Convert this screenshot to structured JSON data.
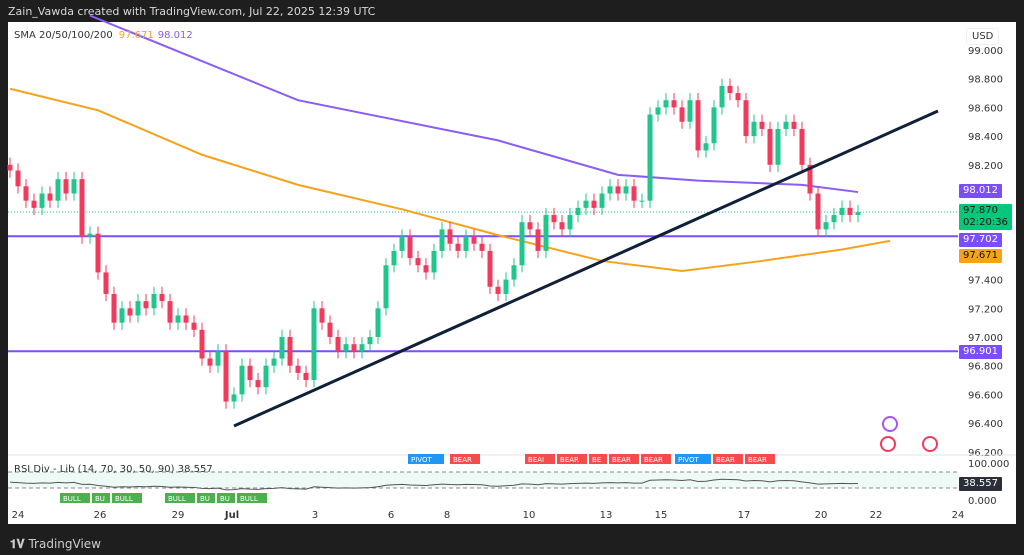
{
  "header": "Zain_Vawda created with TradingView.com, Jul 22, 2025 12:39 UTC",
  "legend": {
    "label": "SMA 20/50/100/200",
    "v1": "97.671",
    "v2": "98.012"
  },
  "rsi_legend": {
    "label": "RSI Div - Lib (14, 70, 30, 50, 90)",
    "value": "38.557"
  },
  "currency": "USD",
  "footer": "TradingView",
  "tags": {
    "sma200": "98.012",
    "last": "97.870",
    "countdown": "02:20:36",
    "hline1": "97.702",
    "sma100": "97.671",
    "hline2": "96.901",
    "rsi": "38.557"
  },
  "colors": {
    "up": "#22c58b",
    "down": "#f23b5c",
    "sma200": "#8b5cf6",
    "sma100": "#f7a21b",
    "hline": "#7c4dff",
    "trend": "#10203a"
  },
  "chart_data": {
    "type": "candlestick",
    "x_unit": "bar index",
    "price_ticks": [
      "99.000",
      "98.800",
      "98.600",
      "98.400",
      "98.200",
      "97.400",
      "97.200",
      "97.000",
      "96.800",
      "96.600",
      "96.400",
      "96.200"
    ],
    "date_ticks": [
      "24",
      "26",
      "29",
      "Jul",
      "3",
      "6",
      "8",
      "10",
      "13",
      "15",
      "17",
      "20",
      "22",
      "24"
    ],
    "closes": [
      98.16,
      98.05,
      97.95,
      97.9,
      98.0,
      97.95,
      98.1,
      98.0,
      98.1,
      97.7,
      97.72,
      97.45,
      97.3,
      97.1,
      97.2,
      97.15,
      97.25,
      97.2,
      97.3,
      97.25,
      97.1,
      97.15,
      97.1,
      97.05,
      96.85,
      96.8,
      96.9,
      96.55,
      96.6,
      96.8,
      96.7,
      96.65,
      96.8,
      96.85,
      97.0,
      96.8,
      96.75,
      96.7,
      97.2,
      97.1,
      97.0,
      96.9,
      96.95,
      96.9,
      96.95,
      97.0,
      97.2,
      97.5,
      97.6,
      97.7,
      97.55,
      97.5,
      97.45,
      97.6,
      97.75,
      97.65,
      97.6,
      97.7,
      97.65,
      97.6,
      97.35,
      97.3,
      97.4,
      97.5,
      97.8,
      97.75,
      97.6,
      97.85,
      97.8,
      97.75,
      97.85,
      97.9,
      97.95,
      97.9,
      98.0,
      98.05,
      98.0,
      98.05,
      97.95,
      97.95,
      98.55,
      98.6,
      98.65,
      98.6,
      98.5,
      98.65,
      98.3,
      98.35,
      98.6,
      98.75,
      98.7,
      98.65,
      98.4,
      98.5,
      98.45,
      98.2,
      98.45,
      98.5,
      98.45,
      98.2,
      98.0,
      97.75,
      97.8,
      97.85,
      97.9,
      97.85,
      97.87
    ],
    "sma200": [
      [
        10,
        99.24
      ],
      [
        36,
        98.65
      ],
      [
        61,
        98.37
      ],
      [
        76,
        98.13
      ],
      [
        86,
        98.09
      ],
      [
        99,
        98.06
      ],
      [
        106,
        98.01
      ]
    ],
    "sma100": [
      [
        0,
        98.73
      ],
      [
        11,
        98.58
      ],
      [
        24,
        98.27
      ],
      [
        36,
        98.06
      ],
      [
        49,
        97.89
      ],
      [
        61,
        97.71
      ],
      [
        74,
        97.53
      ],
      [
        84,
        97.46
      ],
      [
        94,
        97.53
      ],
      [
        104,
        97.61
      ],
      [
        110,
        97.67
      ]
    ],
    "hlines": [
      97.702,
      96.901
    ],
    "trendline": {
      "from": [
        28,
        96.38
      ],
      "to": [
        116,
        98.575
      ]
    },
    "rsi": {
      "levels": [
        70,
        30
      ],
      "range": [
        0,
        100
      ],
      "last": 38.557,
      "axis": [
        "100.000",
        "0.000"
      ]
    },
    "rsi_labels": [
      "BULL",
      "BU",
      "BULL",
      "BULL",
      "BU",
      "BU",
      "BULL",
      "PIVOT",
      "BEAR",
      "BEAI",
      "BEAR",
      "BE",
      "BEAR",
      "BEAR",
      "PIVOT",
      "BEAR",
      "BEAR"
    ]
  }
}
